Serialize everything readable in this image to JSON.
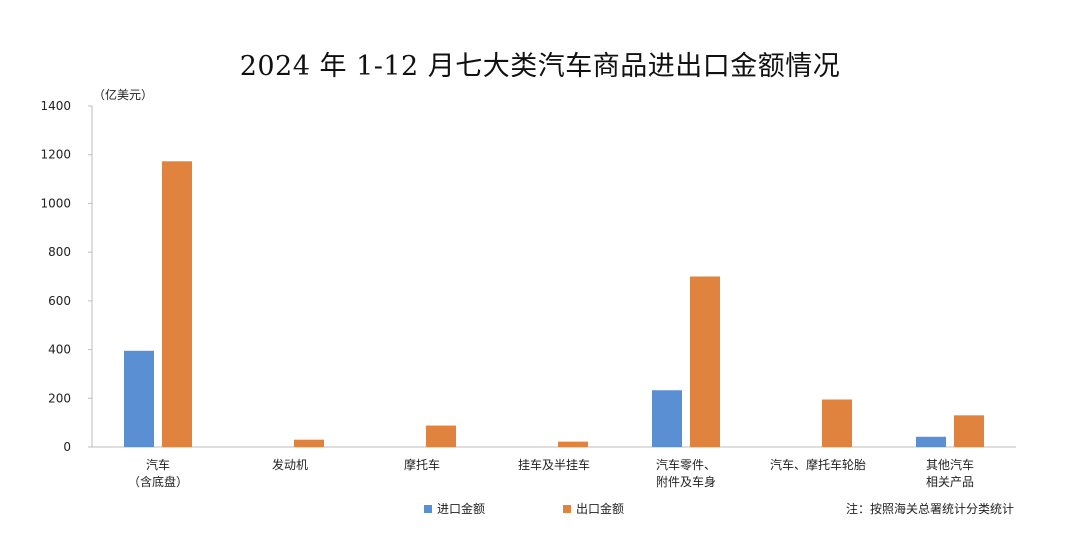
{
  "chart_data": {
    "type": "bar",
    "title": "2024 年 1-12 月七大类汽车商品进出口金额情况",
    "unit_label": "（亿美元）",
    "categories": [
      [
        "汽车",
        "（含底盘）"
      ],
      [
        "发动机"
      ],
      [
        "摩托车"
      ],
      [
        "挂车及半挂车"
      ],
      [
        "汽车零件、",
        "附件及车身"
      ],
      [
        "汽车、摩托车轮胎"
      ],
      [
        "其他汽车",
        "相关产品"
      ]
    ],
    "series": [
      {
        "name": "进口金额",
        "color": "#5b8fd4",
        "values": [
          395,
          0,
          0,
          0,
          233,
          0,
          42
        ]
      },
      {
        "name": "出口金额",
        "color": "#e0833f",
        "values": [
          1173,
          30,
          88,
          22,
          700,
          195,
          130
        ]
      }
    ],
    "ylim": [
      0,
      1400
    ],
    "yticks": [
      0,
      200,
      400,
      600,
      800,
      1000,
      1200,
      1400
    ],
    "grid": false,
    "legend_position": "bottom-center"
  },
  "note": "注：按照海关总署统计分类统计"
}
